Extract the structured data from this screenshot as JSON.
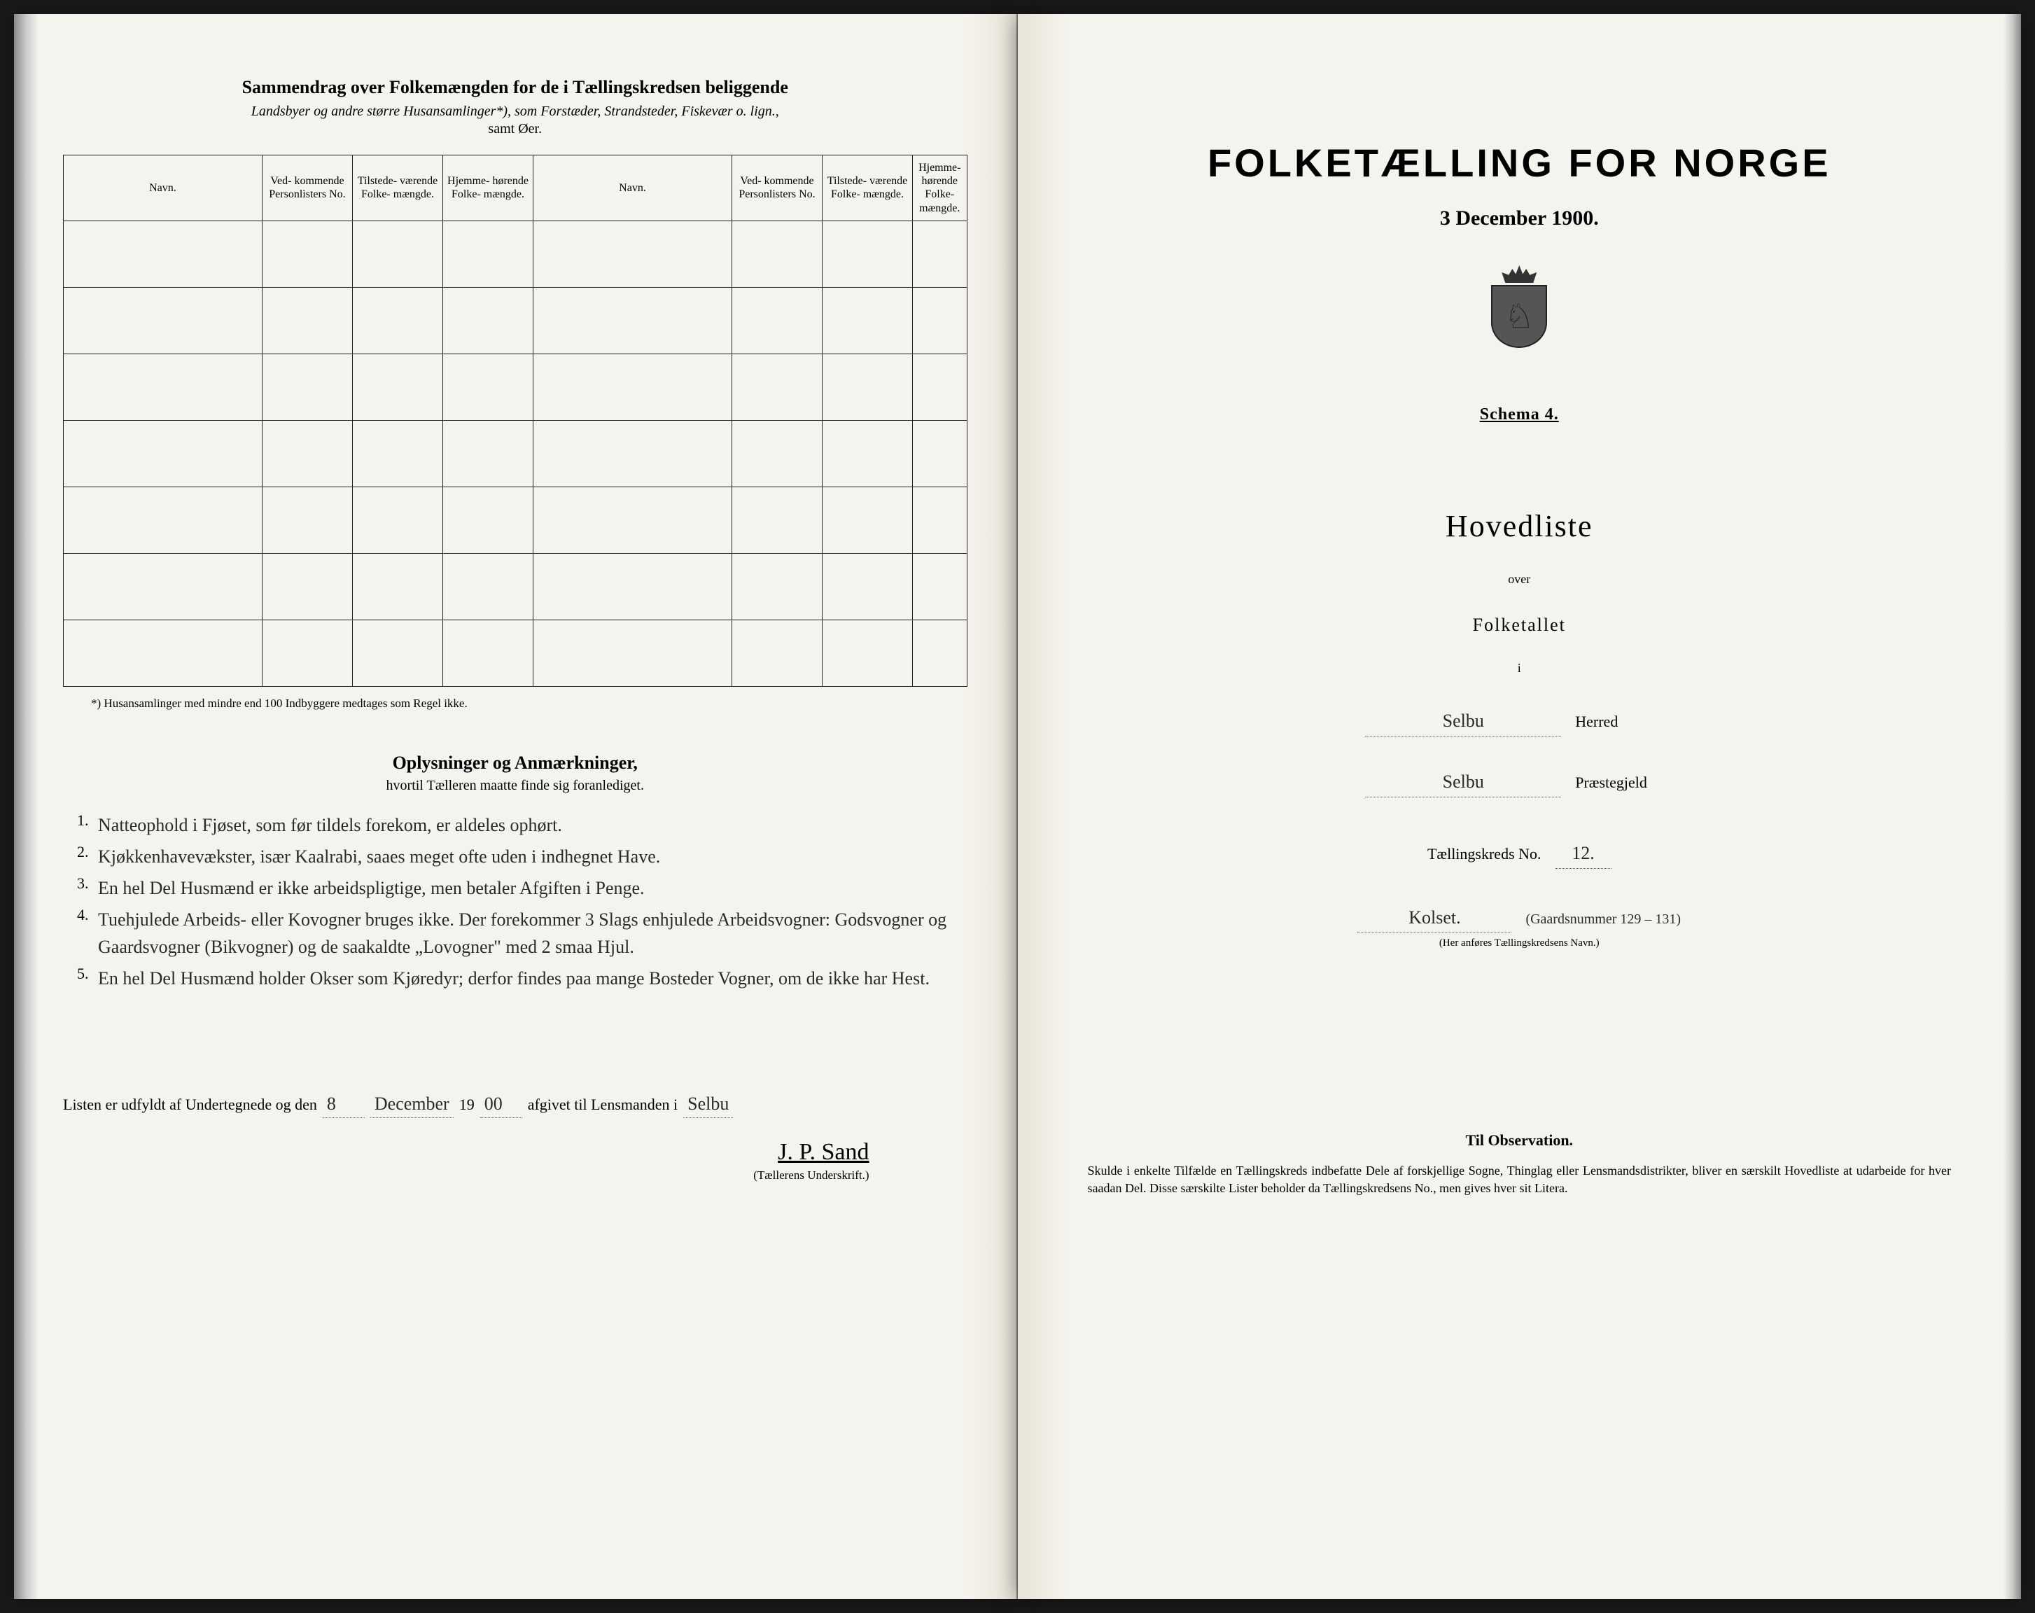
{
  "left": {
    "summary_title": "Sammendrag over Folkemængden for de i Tællingskredsen beliggende",
    "summary_subtitle": "Landsbyer og andre større Husansamlinger*), som Forstæder, Strandsteder, Fiskevær o. lign.,",
    "summary_subtitle2": "samt Øer.",
    "table": {
      "headers": {
        "navn": "Navn.",
        "personlister": "Ved-\nkommende\nPersonlisters\nNo.",
        "tilstede": "Tilstede-\nværende\nFolke-\nmængde.",
        "hjemme": "Hjemme-\nhørende\nFolke-\nmængde."
      },
      "rows_per_side": 7
    },
    "footnote": "*) Husansamlinger med mindre end 100 Indbyggere medtages som Regel ikke.",
    "oplysninger_title": "Oplysninger og Anmærkninger,",
    "oplysninger_sub": "hvortil Tælleren maatte finde sig foranlediget.",
    "notes": [
      "Natteophold i Fjøset, som før tildels forekom, er aldeles ophørt.",
      "Kjøkkenhavevækster, især Kaalrabi, saaes meget ofte uden i indhegnet Have.",
      "En hel Del Husmænd er ikke arbeidspligtige, men betaler Afgiften i Penge.",
      "Tuehjulede Arbeids- eller Kovogner bruges ikke. Der forekommer 3 Slags enhjulede Arbeidsvogner: Godsvogner og Gaardsvogner (Bikvogner) og de saakaldte „Lovogner\" med 2 smaa Hjul.",
      "En hel Del Husmænd holder Okser som Kjøredyr; derfor findes paa mange Bosteder Vogner, om de ikke har Hest."
    ],
    "listen_prefix": "Listen er udfyldt af Undertegnede og den",
    "listen_day": "8",
    "listen_month": "December",
    "listen_year_prefix": "19",
    "listen_year_suffix": "00",
    "listen_mid": "afgivet til Lensmanden i",
    "listen_place": "Selbu",
    "signature": "J. P. Sand",
    "signature_label": "(Tællerens Underskrift.)"
  },
  "right": {
    "title": "FOLKETÆLLING FOR NORGE",
    "date": "3 December 1900.",
    "schema": "Schema 4.",
    "hovedliste": "Hovedliste",
    "over": "over",
    "folketallet": "Folketallet",
    "i": "i",
    "herred_value": "Selbu",
    "herred_label": "Herred",
    "praestegjeld_value": "Selbu",
    "praestegjeld_label": "Præstegjeld",
    "kreds_label": "Tællingskreds No.",
    "kreds_value": "12.",
    "name_value": "Kolset.",
    "paren_value": "(Gaardsnummer 129 – 131)",
    "sub_note": "(Her anføres Tællingskredsens Navn.)",
    "observation_title": "Til Observation.",
    "observation_text": "Skulde i enkelte Tilfælde en Tællingskreds indbefatte Dele af forskjellige Sogne, Thinglag eller Lensmandsdistrikter, bliver en særskilt Hovedliste at udarbeide for hver saadan Del. Disse særskilte Lister beholder da Tællingskredsens No., men gives hver sit Litera."
  },
  "colors": {
    "paper": "#f5f3ed",
    "ink": "#1a1a1a",
    "background": "#1a1a1a"
  }
}
